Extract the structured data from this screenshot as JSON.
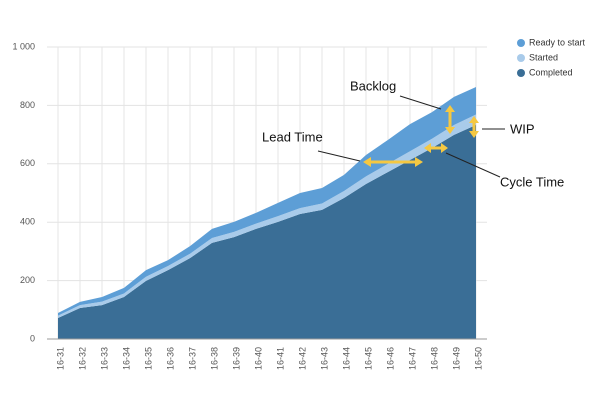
{
  "chart_data": {
    "type": "stacked_area",
    "categories": [
      "16-31",
      "16-32",
      "16-33",
      "16-34",
      "16-35",
      "16-36",
      "16-37",
      "16-38",
      "16-39",
      "16-40",
      "16-41",
      "16-42",
      "16-43",
      "16-44",
      "16-45",
      "16-46",
      "16-47",
      "16-48",
      "16-49",
      "16-50"
    ],
    "series": [
      {
        "name": "Completed",
        "color": "#3a6e96",
        "values": [
          72,
          106,
          116,
          144,
          199,
          236,
          277,
          329,
          349,
          377,
          401,
          428,
          442,
          483,
          531,
          572,
          613,
          654,
          699,
          733
        ]
      },
      {
        "name": "Started",
        "color": "#a9cbea",
        "values": [
          8,
          10,
          12,
          12,
          14,
          14,
          15,
          17,
          18,
          18,
          20,
          20,
          22,
          24,
          26,
          28,
          30,
          32,
          34,
          36
        ]
      },
      {
        "name": "Ready to start",
        "color": "#5d9ed6",
        "values": [
          9,
          11,
          16,
          19,
          23,
          20,
          26,
          31,
          34,
          37,
          45,
          52,
          53,
          55,
          73,
          82,
          93,
          91,
          96,
          94
        ]
      }
    ],
    "ylim": [
      0,
      1000
    ],
    "yticks": [
      0,
      200,
      400,
      600,
      800,
      {
        "value": 1000,
        "label": "1 000"
      }
    ],
    "grid": true,
    "legend": "top-right",
    "annotations": [
      "Backlog",
      "Lead Time",
      "WIP",
      "Cycle Time"
    ]
  }
}
